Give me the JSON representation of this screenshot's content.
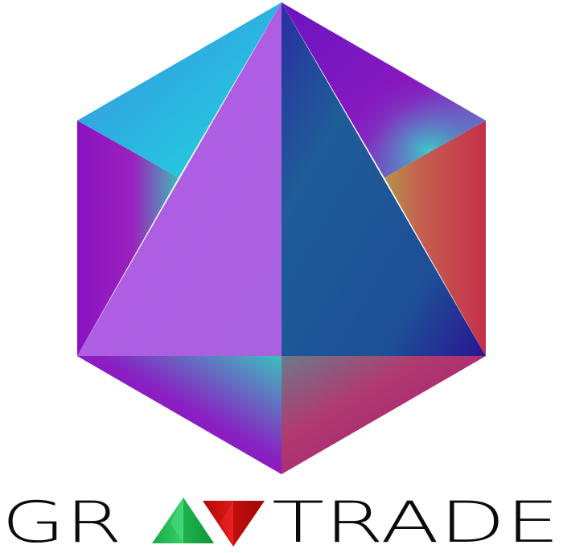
{
  "logo": {
    "brand_name": "GRAVTRADE",
    "wordmark_parts": {
      "prefix": "GR",
      "suffix": "TRADE"
    },
    "icons": {
      "emblem": "hexagon-pyramid-emblem-icon",
      "up_arrow": "green-up-triangle-icon",
      "down_arrow": "red-down-triangle-icon"
    },
    "colors": {
      "text": "#0b0b0b",
      "up": "#22c35a",
      "down": "#d41414",
      "purple": "#8a12c0",
      "violet": "#b565e6",
      "blue": "#1f5f99",
      "cyan": "#2ad0dc",
      "red": "#c5304a"
    }
  }
}
